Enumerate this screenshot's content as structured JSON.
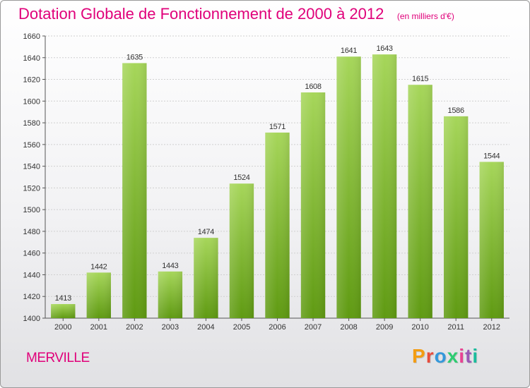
{
  "header": {
    "title": "Dotation Globale de Fonctionnement de 2000 à 2012",
    "subtitle": "(en milliers d'€)"
  },
  "footer": {
    "commune": "MERVILLE",
    "logo_letters": [
      "P",
      "r",
      "o",
      "x",
      "i",
      "t",
      "i"
    ],
    "logo_colors": [
      "#f39c12",
      "#e74c3c",
      "#3498db",
      "#2ecc71",
      "#e84393",
      "#9b59b6",
      "#1abc9c"
    ]
  },
  "chart_data": {
    "type": "bar",
    "title": "Dotation Globale de Fonctionnement de 2000 à 2012",
    "subtitle": "(en milliers d'€)",
    "categories": [
      "2000",
      "2001",
      "2002",
      "2003",
      "2004",
      "2005",
      "2006",
      "2007",
      "2008",
      "2009",
      "2010",
      "2011",
      "2012"
    ],
    "values": [
      1413,
      1442,
      1635,
      1443,
      1474,
      1524,
      1571,
      1608,
      1641,
      1643,
      1615,
      1586,
      1544
    ],
    "ylim": [
      1400,
      1660
    ],
    "yticks": [
      1400,
      1420,
      1440,
      1460,
      1480,
      1500,
      1520,
      1540,
      1560,
      1580,
      1600,
      1620,
      1640,
      1660
    ],
    "grid": true,
    "bar_color_top": "#a6d65a",
    "bar_color_bottom": "#5f9a12",
    "label_color": "#333333",
    "legend": "none"
  }
}
